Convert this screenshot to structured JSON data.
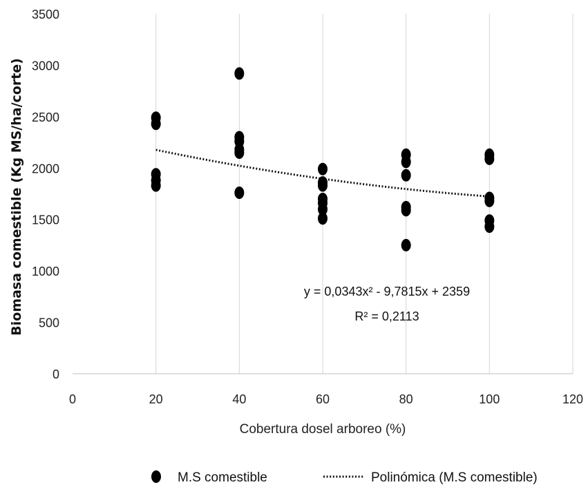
{
  "chart_data": {
    "type": "scatter",
    "xlabel": "Cobertura  dosel arboreo (%)",
    "ylabel": "Biomasa comestible (Kg MS/ha/corte)",
    "xlim": [
      0,
      120
    ],
    "ylim": [
      0,
      3500
    ],
    "xticks": [
      "0",
      "20",
      "40",
      "60",
      "80",
      "100",
      "120"
    ],
    "yticks": [
      "0",
      "500",
      "1000",
      "1500",
      "2000",
      "2500",
      "3000",
      "3500"
    ],
    "grid": "vertical",
    "legend_position": "bottom",
    "series": [
      {
        "name": "M.S comestible",
        "marker": "filled-circle",
        "color": "#000000",
        "points": [
          [
            20,
            2490
          ],
          [
            20,
            2430
          ],
          [
            20,
            1940
          ],
          [
            20,
            1880
          ],
          [
            20,
            1830
          ],
          [
            40,
            2920
          ],
          [
            40,
            2300
          ],
          [
            40,
            2260
          ],
          [
            40,
            2180
          ],
          [
            40,
            2150
          ],
          [
            40,
            1760
          ],
          [
            60,
            1990
          ],
          [
            60,
            1860
          ],
          [
            60,
            1830
          ],
          [
            60,
            1700
          ],
          [
            60,
            1660
          ],
          [
            60,
            1600
          ],
          [
            60,
            1510
          ],
          [
            80,
            2130
          ],
          [
            80,
            2060
          ],
          [
            80,
            1930
          ],
          [
            80,
            1620
          ],
          [
            80,
            1590
          ],
          [
            80,
            1250
          ],
          [
            100,
            2130
          ],
          [
            100,
            2090
          ],
          [
            100,
            1710
          ],
          [
            100,
            1680
          ],
          [
            100,
            1490
          ],
          [
            100,
            1430
          ]
        ]
      },
      {
        "name": "Polinómica (M.S comestible)",
        "line_style": "dotted",
        "color": "#000000",
        "fit": {
          "a": 0.0343,
          "b": -9.7815,
          "c": 2359,
          "x_from": 20,
          "x_to": 100
        }
      }
    ],
    "annotations": [
      "y = 0,0343x² - 9,7815x + 2359",
      "R² = 0,2113"
    ]
  }
}
